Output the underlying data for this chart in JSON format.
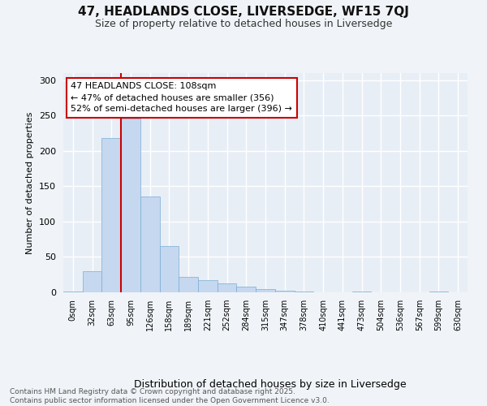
{
  "title1": "47, HEADLANDS CLOSE, LIVERSEDGE, WF15 7QJ",
  "title2": "Size of property relative to detached houses in Liversedge",
  "xlabel": "Distribution of detached houses by size in Liversedge",
  "ylabel": "Number of detached properties",
  "bin_labels": [
    "0sqm",
    "32sqm",
    "63sqm",
    "95sqm",
    "126sqm",
    "158sqm",
    "189sqm",
    "221sqm",
    "252sqm",
    "284sqm",
    "315sqm",
    "347sqm",
    "378sqm",
    "410sqm",
    "441sqm",
    "473sqm",
    "504sqm",
    "536sqm",
    "567sqm",
    "599sqm",
    "630sqm"
  ],
  "bar_heights": [
    1,
    30,
    218,
    246,
    136,
    65,
    22,
    17,
    13,
    8,
    5,
    2,
    1,
    0,
    0,
    1,
    0,
    0,
    0,
    1,
    0
  ],
  "bar_color": "#c5d8f0",
  "bar_edge_color": "#7aadd4",
  "vline_x": 3.0,
  "vline_color": "#cc0000",
  "annotation_text": "47 HEADLANDS CLOSE: 108sqm\n← 47% of detached houses are smaller (356)\n52% of semi-detached houses are larger (396) →",
  "annotation_box_facecolor": "#ffffff",
  "annotation_box_edgecolor": "#cc0000",
  "bg_color": "#f0f4f8",
  "plot_bg_color": "#e8eef6",
  "grid_color": "#ffffff",
  "footer_text": "Contains HM Land Registry data © Crown copyright and database right 2025.\nContains public sector information licensed under the Open Government Licence v3.0.",
  "ylim_max": 310,
  "yticks": [
    0,
    50,
    100,
    150,
    200,
    250,
    300
  ],
  "title1_fontsize": 11,
  "title2_fontsize": 9,
  "xlabel_fontsize": 9,
  "ylabel_fontsize": 8,
  "tick_fontsize": 8,
  "xtick_fontsize": 7,
  "footer_fontsize": 6.5,
  "annot_fontsize": 8
}
